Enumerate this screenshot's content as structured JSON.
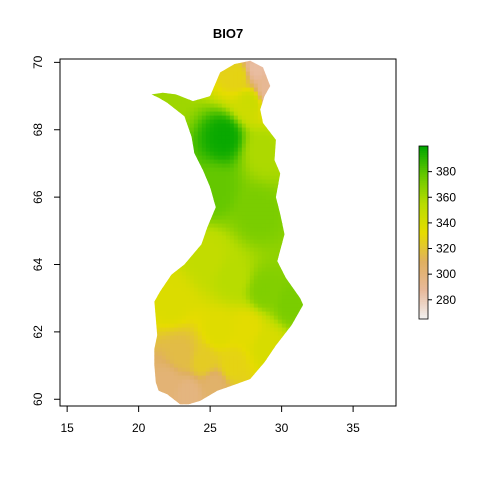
{
  "chart_data": {
    "type": "heatmap",
    "title": "BIO7",
    "xlabel": "",
    "ylabel": "",
    "xlim": [
      14.5,
      38
    ],
    "ylim": [
      59.8,
      70.1
    ],
    "x_ticks": [
      15,
      20,
      25,
      30,
      35
    ],
    "y_ticks": [
      60,
      62,
      64,
      66,
      68,
      70
    ],
    "legend": {
      "placement": "right",
      "range": [
        265,
        400
      ],
      "ticks": [
        280,
        300,
        320,
        340,
        360,
        380
      ],
      "colors": [
        "#f2f2f2",
        "#e8b99b",
        "#e0b060",
        "#e6dc00",
        "#b8dc00",
        "#66c800",
        "#00a600"
      ]
    },
    "outline": [
      [
        21.2,
        60.5
      ],
      [
        21.1,
        61.0
      ],
      [
        21.1,
        61.5
      ],
      [
        21.3,
        61.9
      ],
      [
        21.2,
        62.4
      ],
      [
        21.1,
        62.9
      ],
      [
        21.5,
        63.2
      ],
      [
        22.3,
        63.7
      ],
      [
        23.2,
        64.0
      ],
      [
        24.4,
        64.6
      ],
      [
        24.8,
        65.1
      ],
      [
        25.4,
        65.7
      ],
      [
        25.0,
        66.3
      ],
      [
        24.5,
        66.8
      ],
      [
        23.9,
        67.3
      ],
      [
        23.7,
        67.8
      ],
      [
        23.2,
        68.4
      ],
      [
        22.0,
        68.8
      ],
      [
        21.4,
        68.95
      ],
      [
        20.9,
        69.05
      ],
      [
        21.7,
        69.1
      ],
      [
        22.6,
        69.05
      ],
      [
        23.8,
        68.85
      ],
      [
        25.0,
        69.0
      ],
      [
        25.7,
        69.7
      ],
      [
        26.7,
        69.95
      ],
      [
        27.8,
        70.05
      ],
      [
        28.7,
        69.85
      ],
      [
        29.2,
        69.3
      ],
      [
        28.8,
        69.0
      ],
      [
        28.5,
        68.6
      ],
      [
        28.7,
        68.2
      ],
      [
        29.6,
        67.7
      ],
      [
        29.5,
        67.1
      ],
      [
        29.9,
        66.7
      ],
      [
        29.6,
        66.0
      ],
      [
        29.9,
        65.5
      ],
      [
        30.2,
        64.9
      ],
      [
        29.7,
        64.1
      ],
      [
        30.3,
        63.6
      ],
      [
        31.3,
        63.0
      ],
      [
        31.5,
        62.8
      ],
      [
        30.7,
        62.2
      ],
      [
        29.6,
        61.6
      ],
      [
        28.8,
        61.1
      ],
      [
        27.8,
        60.6
      ],
      [
        26.5,
        60.4
      ],
      [
        25.5,
        60.25
      ],
      [
        24.3,
        59.95
      ],
      [
        23.5,
        59.85
      ],
      [
        22.9,
        59.85
      ],
      [
        22.0,
        60.15
      ],
      [
        21.4,
        60.25
      ],
      [
        21.2,
        60.5
      ]
    ],
    "value_anchors": [
      {
        "x": 26.0,
        "y": 67.8,
        "value": 398
      },
      {
        "x": 25.3,
        "y": 66.2,
        "value": 378
      },
      {
        "x": 24.8,
        "y": 64.2,
        "value": 350
      },
      {
        "x": 26.6,
        "y": 63.6,
        "value": 355
      },
      {
        "x": 28.8,
        "y": 63.2,
        "value": 370
      },
      {
        "x": 30.6,
        "y": 62.8,
        "value": 372
      },
      {
        "x": 28.3,
        "y": 65.5,
        "value": 372
      },
      {
        "x": 28.7,
        "y": 67.4,
        "value": 358
      },
      {
        "x": 27.8,
        "y": 68.8,
        "value": 345
      },
      {
        "x": 27.0,
        "y": 69.6,
        "value": 328
      },
      {
        "x": 28.2,
        "y": 69.8,
        "value": 286
      },
      {
        "x": 29.0,
        "y": 69.2,
        "value": 290
      },
      {
        "x": 22.0,
        "y": 69.0,
        "value": 362
      },
      {
        "x": 22.3,
        "y": 62.9,
        "value": 338
      },
      {
        "x": 25.6,
        "y": 62.0,
        "value": 336
      },
      {
        "x": 27.6,
        "y": 62.1,
        "value": 334
      },
      {
        "x": 29.0,
        "y": 61.6,
        "value": 340
      },
      {
        "x": 23.0,
        "y": 61.3,
        "value": 316
      },
      {
        "x": 24.5,
        "y": 61.1,
        "value": 324
      },
      {
        "x": 26.5,
        "y": 61.0,
        "value": 328
      },
      {
        "x": 22.0,
        "y": 60.5,
        "value": 302
      },
      {
        "x": 23.5,
        "y": 60.2,
        "value": 298
      },
      {
        "x": 25.3,
        "y": 60.45,
        "value": 306
      }
    ]
  }
}
